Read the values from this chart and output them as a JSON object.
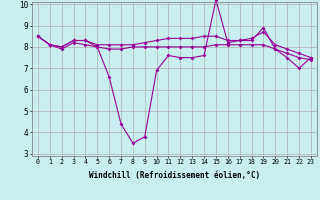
{
  "xlabel": "Windchill (Refroidissement éolien,°C)",
  "x": [
    0,
    1,
    2,
    3,
    4,
    5,
    6,
    7,
    8,
    9,
    10,
    11,
    12,
    13,
    14,
    15,
    16,
    17,
    18,
    19,
    20,
    21,
    22,
    23
  ],
  "line1": [
    8.5,
    8.1,
    8.0,
    8.3,
    8.3,
    8.0,
    6.6,
    4.4,
    3.5,
    3.8,
    6.9,
    7.6,
    7.5,
    7.5,
    7.6,
    10.2,
    8.2,
    8.3,
    8.3,
    8.9,
    7.9,
    7.5,
    7.0,
    7.5
  ],
  "line2": [
    8.5,
    8.1,
    7.9,
    8.2,
    8.1,
    8.0,
    7.9,
    7.9,
    8.0,
    8.0,
    8.0,
    8.0,
    8.0,
    8.0,
    8.0,
    8.1,
    8.1,
    8.1,
    8.1,
    8.1,
    7.9,
    7.7,
    7.5,
    7.4
  ],
  "line3": [
    8.5,
    8.1,
    8.0,
    8.3,
    8.3,
    8.1,
    8.1,
    8.1,
    8.1,
    8.2,
    8.3,
    8.4,
    8.4,
    8.4,
    8.5,
    8.5,
    8.3,
    8.3,
    8.4,
    8.7,
    8.1,
    7.9,
    7.7,
    7.5
  ],
  "line_color": "#990099",
  "bg_color": "#c8eef0",
  "grid_color": "#b0b0b0",
  "ylim_min": 3,
  "ylim_max": 10,
  "yticks": [
    3,
    4,
    5,
    6,
    7,
    8,
    9,
    10
  ],
  "xticks": [
    0,
    1,
    2,
    3,
    4,
    5,
    6,
    7,
    8,
    9,
    10,
    11,
    12,
    13,
    14,
    15,
    16,
    17,
    18,
    19,
    20,
    21,
    22,
    23
  ]
}
